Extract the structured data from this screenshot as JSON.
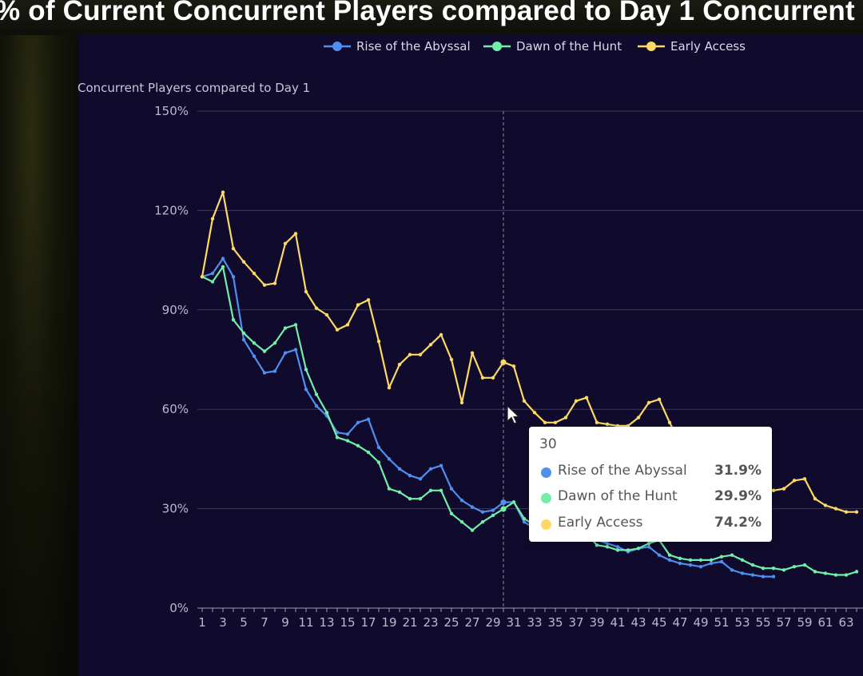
{
  "page": {
    "title": "% of Current Concurrent Players compared to Day 1 Concurrent"
  },
  "chart_data": {
    "type": "line",
    "ylabel": "Concurrent Players compared to Day 1",
    "ylim": [
      0,
      150
    ],
    "yticks": [
      0,
      30,
      60,
      90,
      120,
      150
    ],
    "ytick_labels": [
      "0%",
      "30%",
      "60%",
      "90%",
      "120%",
      "150%"
    ],
    "xlim": [
      1,
      64
    ],
    "xtick_labels": [
      "1",
      "3",
      "5",
      "7",
      "9",
      "11",
      "13",
      "15",
      "17",
      "19",
      "21",
      "23",
      "25",
      "27",
      "29",
      "31",
      "33",
      "35",
      "37",
      "39",
      "41",
      "43",
      "45",
      "47",
      "49",
      "51",
      "53",
      "55",
      "57",
      "59",
      "61",
      "63"
    ],
    "grid": "horizontal",
    "legend_position": "top-center",
    "series": [
      {
        "name": "Rise of the Abyssal",
        "color": "#4e8ff0",
        "values": [
          100,
          101,
          105.5,
          100,
          81,
          76,
          71,
          71.5,
          77,
          78,
          66,
          61,
          58,
          53,
          52.5,
          56,
          57,
          48.5,
          45,
          42,
          40,
          39,
          42,
          43,
          36,
          32.5,
          30.5,
          29,
          29.5,
          31.9,
          32,
          26,
          24,
          25,
          27,
          28,
          25,
          22,
          20.5,
          19.5,
          18.5,
          17,
          18,
          18.5,
          16,
          14.5,
          13.5,
          13,
          12.5,
          13.5,
          14,
          11.5,
          10.5,
          10,
          9.5,
          9.5,
          null,
          null,
          null,
          null,
          null,
          null,
          null,
          null
        ]
      },
      {
        "name": "Dawn of the Hunt",
        "color": "#72eea8",
        "values": [
          100,
          98.5,
          103,
          87,
          83,
          80,
          77.5,
          80,
          84.5,
          85.5,
          72,
          64.5,
          59,
          51.5,
          50.5,
          49,
          47,
          44,
          36,
          35,
          33,
          33,
          35.5,
          35.5,
          28.5,
          26,
          23.5,
          26,
          28,
          29.9,
          32,
          27,
          25,
          24.5,
          26,
          27,
          24.5,
          22.5,
          19,
          18.5,
          17.5,
          17.5,
          18,
          19.5,
          20.5,
          16,
          15,
          14.5,
          14.5,
          14.5,
          15.5,
          16,
          14.5,
          13,
          12,
          12,
          11.5,
          12.5,
          13,
          11,
          10.5,
          10,
          10,
          11
        ]
      },
      {
        "name": "Early Access",
        "color": "#fbd962",
        "values": [
          100,
          117.5,
          125.5,
          108.5,
          104.5,
          101,
          97.5,
          98,
          110,
          113,
          95.5,
          90.5,
          88.5,
          84,
          85.5,
          91.5,
          93,
          80.5,
          66.5,
          73.5,
          76.5,
          76.5,
          79.5,
          82.5,
          75,
          62,
          77,
          69.5,
          69.5,
          74.2,
          73,
          62.5,
          59,
          56,
          56,
          57.5,
          62.5,
          63.5,
          56,
          55.5,
          55,
          55,
          57.5,
          62,
          63,
          56,
          50,
          48,
          46,
          44,
          42,
          40,
          39,
          37.5,
          36,
          35.5,
          36,
          38.5,
          39,
          33,
          31,
          30,
          29,
          29
        ]
      }
    ],
    "hover": {
      "x_label": "30",
      "rows": [
        {
          "name": "Rise of the Abyssal",
          "value": "31.9%",
          "color": "#4e8ff0"
        },
        {
          "name": "Dawn of the Hunt",
          "value": "29.9%",
          "color": "#72eea8"
        },
        {
          "name": "Early Access",
          "value": "74.2%",
          "color": "#fbd962"
        }
      ]
    }
  }
}
